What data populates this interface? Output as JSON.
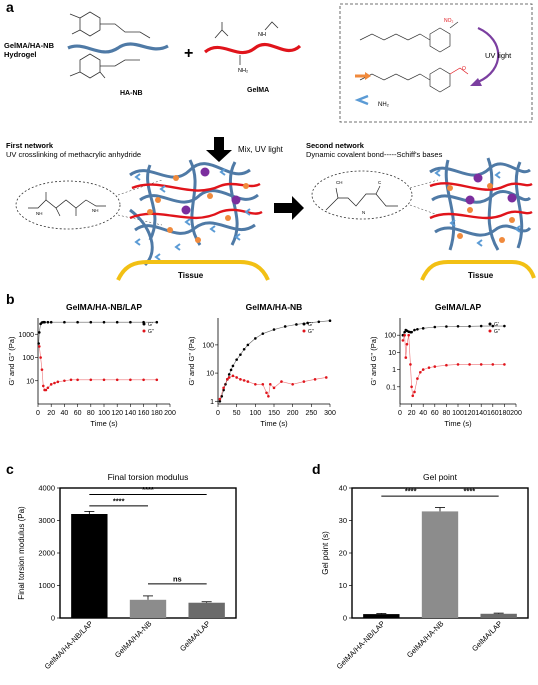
{
  "panel_labels": {
    "a": "a",
    "b": "b",
    "c": "c",
    "d": "d"
  },
  "panel_a": {
    "hydrogel_label": "GelMA/HA-NB\nHydrogel",
    "hanb_label": "HA-NB",
    "gelma_label": "GelMA",
    "plus": "+",
    "uv_light": "UV light",
    "nh2_legend": "NH₂",
    "mix_uv": "Mix, UV light",
    "first_network_title": "First network",
    "first_network_desc": "UV crosslinking of methacrylic anhydride",
    "second_network_title": "Second network",
    "second_network_desc": "Dynamic covalent bond-----Schiff's bases",
    "tissue_label": "Tissue",
    "colors": {
      "hanb_chain": "#4f7aa6",
      "gelma_chain": "#e0141b",
      "tissue": "#f2c014",
      "node_orange": "#f08a3c",
      "node_blue": "#5b9bd5",
      "node_purple": "#7b2e9e",
      "uv_arrow": "#7b3fa0"
    }
  },
  "chart_data": [
    {
      "type": "scatter",
      "title": "GelMA/HA-NB/LAP",
      "xlabel": "Time (s)",
      "ylabel": "G' and G'' (Pa)",
      "yscale": "log",
      "xlim": [
        0,
        200
      ],
      "ylim": [
        1,
        5000
      ],
      "xticks": [
        "0",
        "20",
        "40",
        "60",
        "80",
        "100",
        "120",
        "140",
        "160",
        "180",
        "200"
      ],
      "yticks": [
        "10",
        "100",
        "1000"
      ],
      "legend_position": "top-right",
      "series": [
        {
          "name": "G'",
          "color": "#000000",
          "x": [
            1,
            2,
            4,
            6,
            8,
            10,
            15,
            20,
            40,
            60,
            80,
            100,
            120,
            140,
            160,
            180
          ],
          "y": [
            400,
            1200,
            2800,
            3200,
            3300,
            3300,
            3300,
            3300,
            3300,
            3300,
            3300,
            3300,
            3300,
            3300,
            3300,
            3300
          ]
        },
        {
          "name": "G''",
          "color": "#e0141b",
          "x": [
            2,
            4,
            6,
            8,
            10,
            12,
            15,
            20,
            25,
            30,
            40,
            50,
            60,
            80,
            100,
            120,
            140,
            160,
            180
          ],
          "y": [
            300,
            100,
            30,
            6,
            4,
            4,
            5,
            7,
            8,
            9,
            10,
            11,
            11,
            11,
            11,
            11,
            11,
            11,
            11
          ]
        }
      ]
    },
    {
      "type": "scatter",
      "title": "GelMA/HA-NB",
      "xlabel": "Time (s)",
      "ylabel": "G' and G'' (Pa)",
      "yscale": "log",
      "xlim": [
        0,
        300
      ],
      "ylim": [
        0.8,
        900
      ],
      "xticks": [
        "0",
        "50",
        "100",
        "150",
        "200",
        "250",
        "300"
      ],
      "yticks": [
        "1",
        "10",
        "100"
      ],
      "legend_position": "top-right",
      "series": [
        {
          "name": "G'",
          "color": "#000000",
          "x": [
            5,
            10,
            15,
            20,
            25,
            30,
            35,
            40,
            50,
            60,
            70,
            80,
            100,
            120,
            150,
            180,
            210,
            240,
            270,
            300
          ],
          "y": [
            1,
            1.5,
            2.5,
            4,
            6,
            9,
            13,
            18,
            30,
            45,
            70,
            100,
            170,
            250,
            350,
            450,
            530,
            600,
            660,
            720
          ]
        },
        {
          "name": "G''",
          "color": "#e0141b",
          "x": [
            5,
            15,
            25,
            30,
            40,
            50,
            60,
            70,
            80,
            100,
            120,
            130,
            135,
            140,
            150,
            170,
            200,
            230,
            260,
            290
          ],
          "y": [
            1.2,
            3,
            6,
            7,
            8,
            7,
            6,
            5.5,
            5,
            4,
            4,
            2,
            1.5,
            4,
            3,
            5,
            4,
            5,
            6,
            7
          ]
        }
      ]
    },
    {
      "type": "scatter",
      "title": "GelMA/LAP",
      "xlabel": "Time (s)",
      "ylabel": "G' and G'' (Pa)",
      "yscale": "log",
      "xlim": [
        0,
        200
      ],
      "ylim": [
        0.01,
        1000
      ],
      "xticks": [
        "0",
        "20",
        "40",
        "60",
        "80",
        "100",
        "120",
        "140",
        "160",
        "180",
        "200"
      ],
      "yticks": [
        "0.1",
        "1",
        "10",
        "100"
      ],
      "legend_position": "top-right",
      "series": [
        {
          "name": "G'",
          "color": "#000000",
          "x": [
            5,
            8,
            10,
            12,
            15,
            18,
            20,
            25,
            30,
            40,
            60,
            80,
            100,
            120,
            140,
            160,
            180
          ],
          "y": [
            100,
            150,
            200,
            180,
            160,
            150,
            150,
            200,
            220,
            250,
            300,
            320,
            330,
            330,
            340,
            340,
            340
          ]
        },
        {
          "name": "G''",
          "color": "#e0141b",
          "x": [
            5,
            8,
            10,
            12,
            15,
            18,
            20,
            22,
            25,
            30,
            35,
            40,
            50,
            60,
            80,
            100,
            120,
            140,
            160,
            180
          ],
          "y": [
            50,
            100,
            5,
            30,
            100,
            2,
            0.1,
            0.03,
            0.05,
            0.3,
            0.7,
            1,
            1.3,
            1.5,
            1.8,
            2,
            2,
            2,
            2,
            2
          ]
        }
      ]
    },
    {
      "type": "bar",
      "title": "Final torsion modulus",
      "ylabel": "Final torsion modulus (Pa)",
      "xlabel": "",
      "categories": [
        "GelMA/HA-NB/LAP",
        "GelMA/HA-NB",
        "GelMA/LAP"
      ],
      "values": [
        3200,
        560,
        470
      ],
      "errors": [
        80,
        120,
        30
      ],
      "colors": [
        "#000000",
        "#8c8c8c",
        "#6b6b6b"
      ],
      "ylim": [
        0,
        4000
      ],
      "yticks": [
        "0",
        "1000",
        "2000",
        "3000",
        "4000"
      ],
      "significance": [
        {
          "between": [
            0,
            2
          ],
          "label": "****"
        },
        {
          "between": [
            0,
            1
          ],
          "label": "****"
        },
        {
          "between": [
            1,
            2
          ],
          "label": "ns"
        }
      ]
    },
    {
      "type": "bar",
      "title": "Gel point",
      "ylabel": "Gel point (s)",
      "xlabel": "",
      "categories": [
        "GelMA/HA-NB/LAP",
        "GelMA/HA-NB",
        "GelMA/LAP"
      ],
      "values": [
        1.2,
        32.8,
        1.3
      ],
      "errors": [
        0.2,
        1.2,
        0.2
      ],
      "colors": [
        "#000000",
        "#8c8c8c",
        "#6b6b6b"
      ],
      "ylim": [
        0,
        40
      ],
      "yticks": [
        "0",
        "10",
        "20",
        "30",
        "40"
      ],
      "significance": [
        {
          "between": [
            0,
            1
          ],
          "label": "****"
        },
        {
          "between": [
            1,
            2
          ],
          "label": "****"
        }
      ]
    }
  ]
}
